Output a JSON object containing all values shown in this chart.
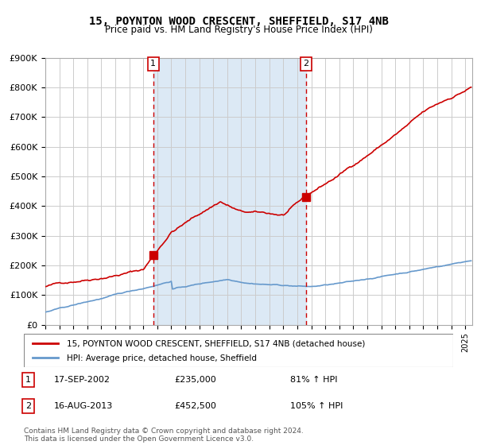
{
  "title": "15, POYNTON WOOD CRESCENT, SHEFFIELD, S17 4NB",
  "subtitle": "Price paid vs. HM Land Registry's House Price Index (HPI)",
  "legend_line1": "15, POYNTON WOOD CRESCENT, SHEFFIELD, S17 4NB (detached house)",
  "legend_line2": "HPI: Average price, detached house, Sheffield",
  "annotation1_label": "1",
  "annotation1_date": "17-SEP-2002",
  "annotation1_price": "£235,000",
  "annotation1_hpi": "81% ↑ HPI",
  "annotation2_label": "2",
  "annotation2_date": "16-AUG-2013",
  "annotation2_price": "£452,500",
  "annotation2_hpi": "105% ↑ HPI",
  "footnote": "Contains HM Land Registry data © Crown copyright and database right 2024.\nThis data is licensed under the Open Government Licence v3.0.",
  "red_color": "#cc0000",
  "blue_color": "#6699cc",
  "bg_color": "#dce9f5",
  "grid_color": "#cccccc",
  "highlight_x1": 2002.71,
  "highlight_x2": 2013.62,
  "ylim": [
    0,
    900000
  ],
  "xlim_start": 1995.0,
  "xlim_end": 2025.5
}
